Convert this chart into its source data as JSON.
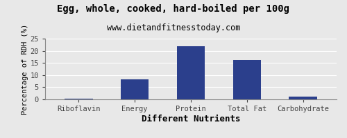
{
  "title": "Egg, whole, cooked, hard-boiled per 100g",
  "subtitle": "www.dietandfitnesstoday.com",
  "xlabel": "Different Nutrients",
  "ylabel": "Percentage of RDH (%)",
  "categories": [
    "Riboflavin",
    "Energy",
    "Protein",
    "Total Fat",
    "Carbohydrate"
  ],
  "values": [
    0.3,
    8.1,
    22.0,
    16.2,
    1.0
  ],
  "bar_color": "#2b3f8c",
  "ylim": [
    0,
    25
  ],
  "yticks": [
    0,
    5,
    10,
    15,
    20,
    25
  ],
  "background_color": "#e8e8e8",
  "title_fontsize": 10,
  "subtitle_fontsize": 8.5,
  "xlabel_fontsize": 9,
  "ylabel_fontsize": 7.5,
  "tick_fontsize": 7.5,
  "xlabel_fontweight": "bold",
  "bar_width": 0.5
}
